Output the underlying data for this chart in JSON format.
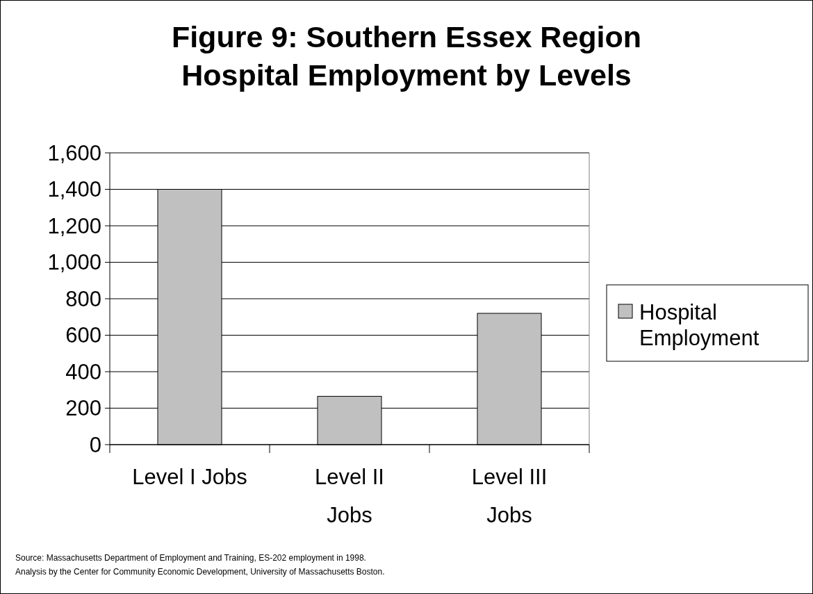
{
  "chart_data": {
    "type": "bar",
    "title": "Figure 9: Southern Essex Region\nHospital Employment by Levels",
    "categories": [
      "Level I Jobs",
      "Level II Jobs",
      "Level III Jobs"
    ],
    "series": [
      {
        "name": "Hospital Employment",
        "color": "#c0c0c0",
        "values": [
          1400,
          265,
          720
        ]
      }
    ],
    "ylim": [
      0,
      1600
    ],
    "yticks": [
      {
        "value": 0,
        "label": "0"
      },
      {
        "value": 200,
        "label": "200"
      },
      {
        "value": 400,
        "label": "400"
      },
      {
        "value": 600,
        "label": "600"
      },
      {
        "value": 800,
        "label": "800"
      },
      {
        "value": 1000,
        "label": "1,000"
      },
      {
        "value": 1200,
        "label": "1,200"
      },
      {
        "value": 1400,
        "label": "1,400"
      },
      {
        "value": 1600,
        "label": "1,600"
      }
    ],
    "grid": "y",
    "legend": "right",
    "annotations": [
      "Source:  Massachusetts Department of Employment and Training, ES-202 employment in 1998.",
      "Analysis by the Center for Community Economic Development, University of Massachusetts Boston."
    ]
  }
}
